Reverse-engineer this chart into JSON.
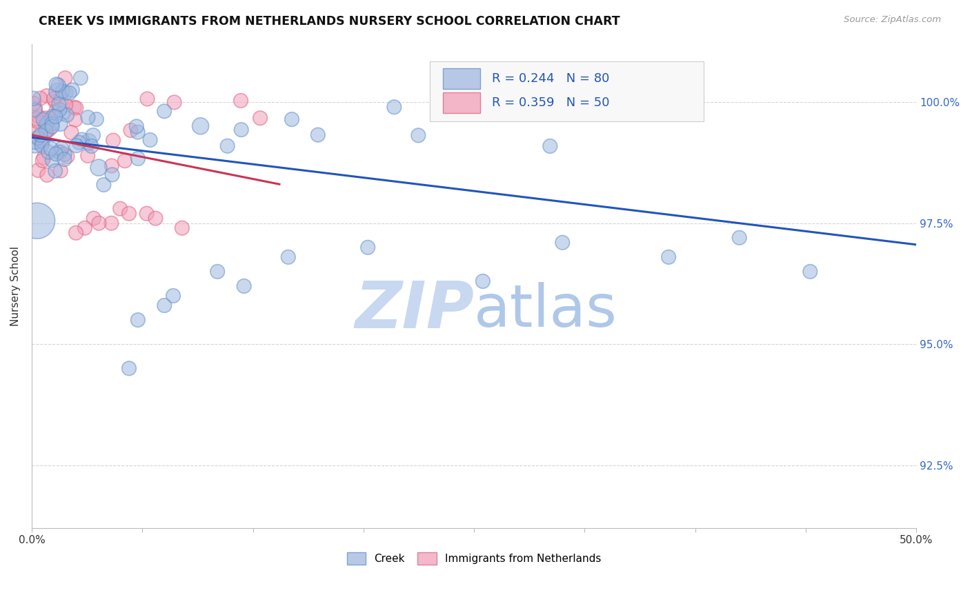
{
  "title": "CREEK VS IMMIGRANTS FROM NETHERLANDS NURSERY SCHOOL CORRELATION CHART",
  "source": "Source: ZipAtlas.com",
  "ylabel": "Nursery School",
  "xlim": [
    0.0,
    50.0
  ],
  "ylim": [
    91.2,
    101.2
  ],
  "yticks": [
    92.5,
    95.0,
    97.5,
    100.0
  ],
  "ytick_labels": [
    "92.5%",
    "95.0%",
    "97.5%",
    "100.0%"
  ],
  "xticks": [
    0.0,
    6.25,
    12.5,
    18.75,
    25.0,
    31.25,
    37.5,
    43.75,
    50.0
  ],
  "xtick_labels": [
    "0.0%",
    "",
    "",
    "",
    "",
    "",
    "",
    "",
    "50.0%"
  ],
  "creek_R": 0.244,
  "creek_N": 80,
  "netherlands_R": 0.359,
  "netherlands_N": 50,
  "creek_color": "#a0b8e0",
  "netherlands_color": "#f0a0b8",
  "creek_edge_color": "#6090c8",
  "netherlands_edge_color": "#e06080",
  "creek_line_color": "#2255bb",
  "netherlands_line_color": "#cc3355",
  "background_color": "#ffffff",
  "grid_color": "#cccccc",
  "watermark_color": "#d0dff5",
  "legend_box_color": "#f8f8f8",
  "legend_box_edge": "#cccccc",
  "rn_text_color": "#2255bb",
  "title_color": "#111111",
  "source_color": "#999999",
  "ylabel_color": "#333333",
  "right_tick_color": "#3366cc"
}
